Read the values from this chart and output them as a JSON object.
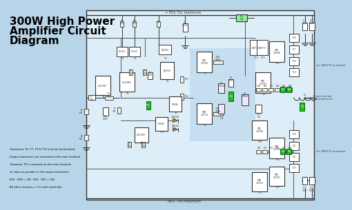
{
  "title_line1": "300W High Power",
  "title_line2": "Amplifier Circuit",
  "title_line3": "Diagram",
  "title_fontsize": 11,
  "title_color": "#000000",
  "title_weight": "bold",
  "bg_color": "#b8d4e8",
  "circuit_bg": "#ddeef8",
  "dark": "#333333",
  "white": "#ffffff",
  "green_bright": "#00cc00",
  "green_dark": "#006600",
  "beige": "#f0f0e0",
  "top_label": "+ POS 70v maximum",
  "bottom_label": "- NEG 70v maximum",
  "right_label1": "4 x 2N3773 or similar",
  "right_label2": "4 x 2N3773 or similar",
  "right_label3": "30 turns from wire\non form d/a former",
  "annotations": [
    "Transistors T6, T7, T9 & T10 must be heatsinkted.",
    "Output transistors are mounted on the main heatsink.",
    "Transistor T8 is mounted on the main heatsink",
    "as close as possible to the output transistors.",
    "R23 - R38 = 2W;  R20 - R22 = 1W;",
    "All other resistors = 0.5 watt metal film."
  ]
}
